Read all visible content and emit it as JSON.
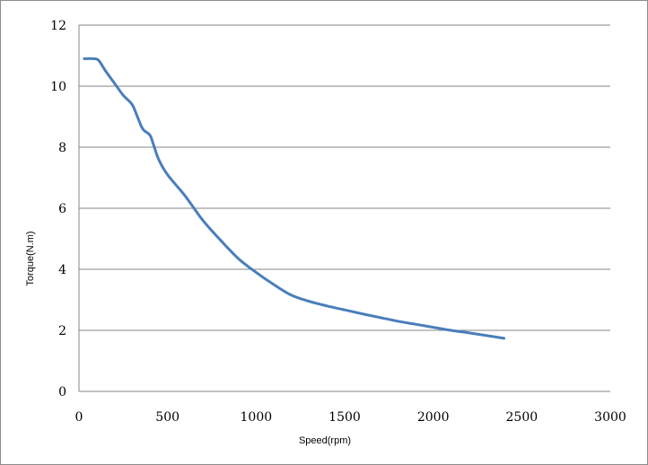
{
  "chart_data": {
    "type": "line",
    "title": "",
    "xlabel": "Speed(rpm)",
    "ylabel": "Torque(N.m)",
    "xlim": [
      0,
      3000
    ],
    "ylim": [
      0,
      12
    ],
    "xticks": [
      0,
      500,
      1000,
      1500,
      2000,
      2500,
      3000
    ],
    "yticks": [
      0,
      2,
      4,
      6,
      8,
      10,
      12
    ],
    "grid": "horizontal",
    "legend": "none",
    "series": [
      {
        "color": "#4a7ebb",
        "x": [
          30,
          80,
          110,
          150,
          200,
          250,
          300,
          330,
          360,
          400,
          420,
          450,
          500,
          600,
          700,
          800,
          900,
          1000,
          1100,
          1200,
          1300,
          1400,
          1500,
          1600,
          1700,
          1800,
          1900,
          2000,
          2100,
          2200,
          2300,
          2400
        ],
        "y": [
          10.9,
          10.9,
          10.85,
          10.5,
          10.1,
          9.7,
          9.4,
          9.0,
          8.6,
          8.4,
          8.1,
          7.6,
          7.1,
          6.4,
          5.6,
          4.95,
          4.35,
          3.9,
          3.5,
          3.15,
          2.95,
          2.8,
          2.67,
          2.54,
          2.42,
          2.3,
          2.2,
          2.1,
          2.0,
          1.92,
          1.83,
          1.74
        ]
      }
    ]
  }
}
